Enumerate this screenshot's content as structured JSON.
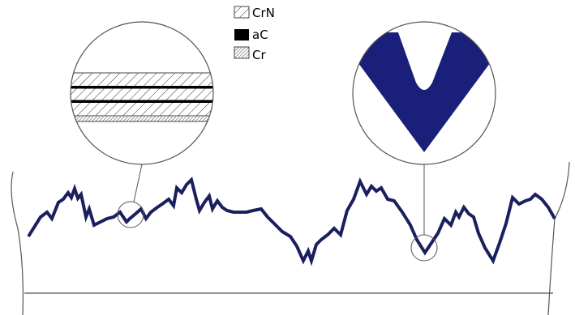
{
  "legend": {
    "items": [
      {
        "label": "CrN",
        "pattern": "hatch-fine"
      },
      {
        "label": "aC",
        "pattern": "solid-black"
      },
      {
        "label": "Cr",
        "pattern": "hatch-dense"
      }
    ]
  },
  "colors": {
    "surface_line": "#1a1f5e",
    "v_groove_fill": "#1a1f7a",
    "outline": "#555555"
  }
}
